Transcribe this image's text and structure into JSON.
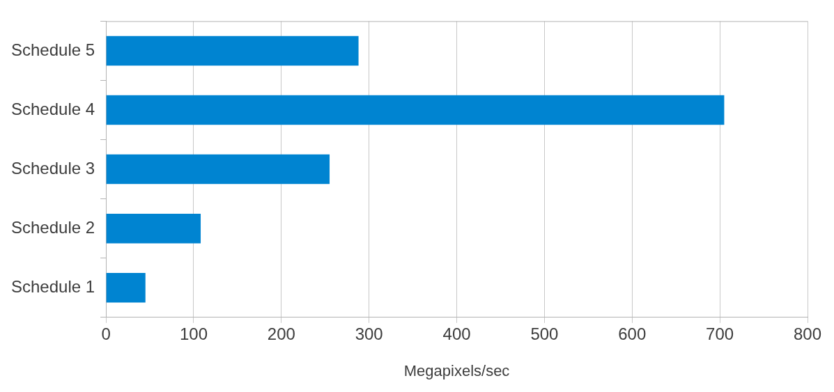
{
  "chart_data": {
    "type": "bar",
    "orientation": "horizontal",
    "xlabel": "Megapixels/sec",
    "categories": [
      "Schedule 5",
      "Schedule 4",
      "Schedule 3",
      "Schedule 2",
      "Schedule 1"
    ],
    "values": [
      288,
      705,
      255,
      108,
      45
    ],
    "color": "#0084d1",
    "xlim": [
      0,
      800
    ],
    "xticks": [
      0,
      100,
      200,
      300,
      400,
      500,
      600,
      700,
      800
    ],
    "grid": "x",
    "legend": false
  }
}
